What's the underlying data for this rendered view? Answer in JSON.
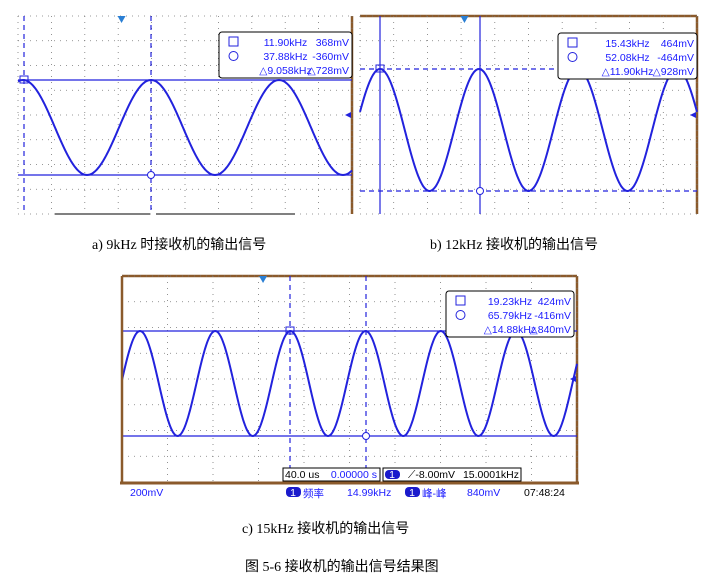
{
  "panels": [
    {
      "id": "a",
      "caption": "a) 9kHz 时接收机的输出信号",
      "cursor_a_freq": "11.90kHz",
      "cursor_a_volt": "368mV",
      "cursor_b_freq": "37.88kHz",
      "cursor_b_volt": "-360mV",
      "delta_freq": "9.058kHz",
      "delta_volt": "728mV"
    },
    {
      "id": "b",
      "caption": "b) 12kHz 接收机的输出信号",
      "cursor_a_freq": "15.43kHz",
      "cursor_a_volt": "464mV",
      "cursor_b_freq": "52.08kHz",
      "cursor_b_volt": "-464mV",
      "delta_freq": "11.90kHz",
      "delta_volt": "928mV"
    },
    {
      "id": "c",
      "caption": "c) 15kHz 接收机的输出信号",
      "cursor_a_freq": "19.23kHz",
      "cursor_a_volt": "424mV",
      "cursor_b_freq": "65.79kHz",
      "cursor_b_volt": "-416mV",
      "delta_freq": "14.88kHz",
      "delta_volt": "840mV",
      "timebase": "40.0 us",
      "trigger_pos": "0.00000 s",
      "channel": "1",
      "trigger_level": "-8.00mV",
      "trigger_freq": "15.0001kHz",
      "volts_div": "200mV",
      "meas1_label": "频率",
      "meas1_value": "14.99kHz",
      "meas2_label": "峰-峰",
      "meas2_value": "840mV",
      "time": "07:48:24"
    }
  ],
  "figure_caption": "图 5-6  接收机的输出信号结果图",
  "colors": {
    "trace": "#2222dd",
    "cursor": "#22aaee",
    "frame": "#8b5a2b"
  }
}
